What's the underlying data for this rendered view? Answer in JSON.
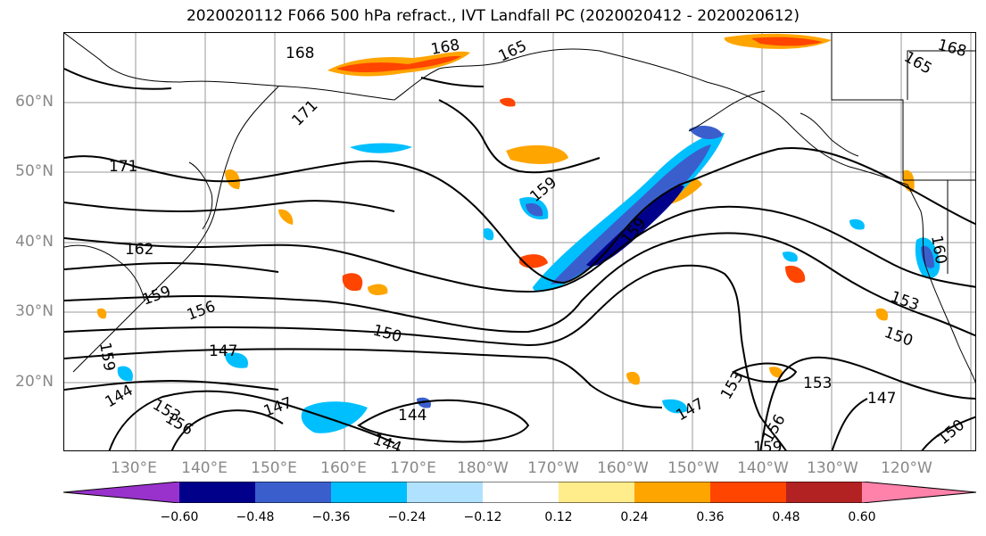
{
  "title": "2020020112 F066 500 hPa refract., IVT Landfall PC (2020020412 - 2020020612)",
  "lat_labels": [
    "60°N",
    "50°N",
    "40°N",
    "30°N",
    "20°N"
  ],
  "lon_labels": [
    "130°E",
    "140°E",
    "150°E",
    "160°E",
    "170°E",
    "180°W",
    "170°W",
    "160°W",
    "150°W",
    "140°W",
    "130°W",
    "120°W"
  ],
  "contour_labels": [
    "168",
    "168",
    "165",
    "165",
    "168",
    "171",
    "171",
    "162",
    "159",
    "159",
    "156",
    "150",
    "147",
    "144",
    "153",
    "156",
    "144",
    "147",
    "144",
    "159",
    "159",
    "153",
    "156",
    "153",
    "150",
    "147",
    "147",
    "150",
    "160",
    "159",
    "153"
  ],
  "colorbar": {
    "ticks": [
      "−0.60",
      "−0.48",
      "−0.36",
      "−0.24",
      "−0.12",
      "0.12",
      "0.24",
      "0.36",
      "0.48",
      "0.60"
    ],
    "colors": [
      "#9932cc",
      "#00008b",
      "#3a5fcd",
      "#00bfff",
      "#b0e2ff",
      "#ffffff",
      "#ffec8b",
      "#ffa500",
      "#ff4500",
      "#b22222",
      "#ff82ab"
    ]
  }
}
